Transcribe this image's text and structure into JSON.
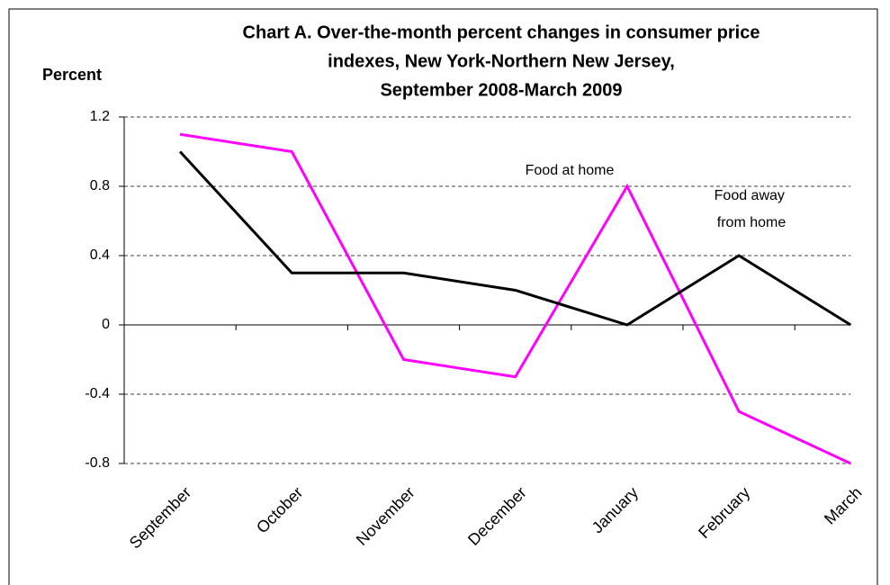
{
  "chart_data": {
    "type": "line",
    "title": [
      "Chart A.  Over-the-month percent changes in consumer price",
      "indexes, New York-Northern New Jersey,",
      "September 2008-March 2009"
    ],
    "y_label": "Percent",
    "categories": [
      "September",
      "October",
      "November",
      "December",
      "January",
      "February",
      "March"
    ],
    "series": [
      {
        "name": "Food at home",
        "color": "#ff00ff",
        "values": [
          1.1,
          1.0,
          -0.2,
          -0.3,
          0.8,
          -0.5,
          -0.8
        ]
      },
      {
        "name": "Food away from home",
        "color": "#000000",
        "values": [
          1.0,
          0.3,
          0.3,
          0.2,
          0.0,
          0.4,
          0.0
        ]
      }
    ],
    "ylim": [
      -0.8,
      1.2
    ],
    "yticks": [
      1.2,
      0.8,
      0.4,
      0,
      -0.4,
      -0.8
    ],
    "grid": true
  }
}
